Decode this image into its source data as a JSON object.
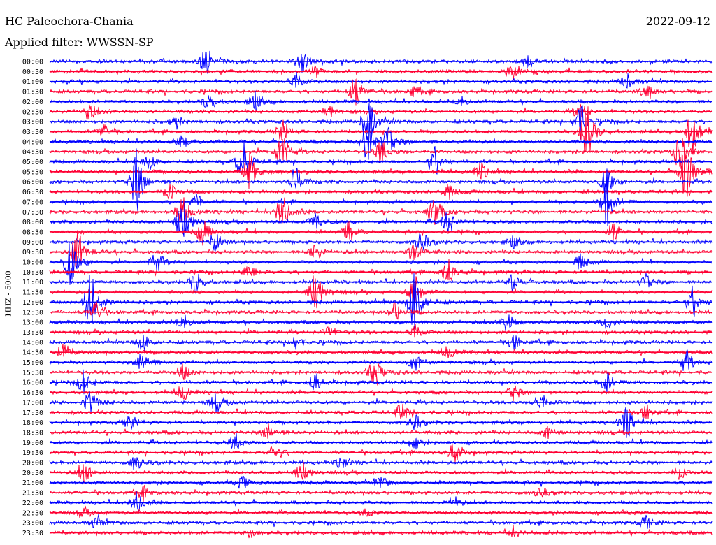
{
  "header": {
    "station": "HC Paleochora-Chania",
    "date": "2022-09-12",
    "filter": "Applied filter: WWSSN-SP"
  },
  "chart_data": {
    "type": "line",
    "title": "HC Paleochora-Chania",
    "ylabel": "HHZ - 5000",
    "trace_colors": [
      "#0000ff",
      "#ff0033"
    ],
    "rows": [
      {
        "label": "00:00",
        "events": [
          [
            0.235,
            1.0
          ],
          [
            0.38,
            0.7
          ],
          [
            0.72,
            0.4
          ]
        ]
      },
      {
        "label": "00:30",
        "events": [
          [
            0.7,
            0.6
          ],
          [
            0.4,
            0.3
          ]
        ]
      },
      {
        "label": "01:00",
        "events": [
          [
            0.37,
            0.6
          ],
          [
            0.87,
            0.5
          ]
        ]
      },
      {
        "label": "01:30",
        "events": [
          [
            0.46,
            1.1
          ],
          [
            0.55,
            0.4
          ],
          [
            0.9,
            0.5
          ]
        ]
      },
      {
        "label": "02:00",
        "events": [
          [
            0.24,
            0.6
          ],
          [
            0.31,
            0.6
          ],
          [
            0.62,
            0.3
          ]
        ]
      },
      {
        "label": "02:30",
        "events": [
          [
            0.06,
            0.6
          ],
          [
            0.42,
            0.4
          ],
          [
            0.8,
            0.6
          ]
        ]
      },
      {
        "label": "03:00",
        "events": [
          [
            0.48,
            1.5
          ],
          [
            0.8,
            1.3
          ],
          [
            0.19,
            0.4
          ]
        ]
      },
      {
        "label": "03:30",
        "events": [
          [
            0.08,
            0.5
          ],
          [
            0.35,
            0.7
          ],
          [
            0.81,
            2.0
          ],
          [
            0.97,
            1.8
          ]
        ]
      },
      {
        "label": "04:00",
        "events": [
          [
            0.48,
            1.9
          ],
          [
            0.51,
            0.9
          ],
          [
            0.2,
            0.4
          ]
        ]
      },
      {
        "label": "04:30",
        "events": [
          [
            0.35,
            1.3
          ],
          [
            0.5,
            0.9
          ],
          [
            0.95,
            1.4
          ]
        ]
      },
      {
        "label": "05:00",
        "events": [
          [
            0.29,
            1.5
          ],
          [
            0.58,
            1.0
          ],
          [
            0.15,
            0.5
          ]
        ]
      },
      {
        "label": "05:30",
        "events": [
          [
            0.3,
            1.4
          ],
          [
            0.96,
            2.2
          ],
          [
            0.65,
            0.6
          ]
        ]
      },
      {
        "label": "06:00",
        "events": [
          [
            0.13,
            2.2
          ],
          [
            0.37,
            1.0
          ],
          [
            0.84,
            0.9
          ]
        ]
      },
      {
        "label": "06:30",
        "events": [
          [
            0.18,
            0.6
          ],
          [
            0.6,
            0.5
          ]
        ]
      },
      {
        "label": "07:00",
        "events": [
          [
            0.84,
            1.7
          ],
          [
            0.22,
            0.5
          ]
        ]
      },
      {
        "label": "07:30",
        "events": [
          [
            0.35,
            1.2
          ],
          [
            0.58,
            1.1
          ],
          [
            0.2,
            1.0
          ]
        ]
      },
      {
        "label": "08:00",
        "events": [
          [
            0.2,
            1.8
          ],
          [
            0.4,
            0.6
          ],
          [
            0.6,
            0.9
          ]
        ]
      },
      {
        "label": "08:30",
        "events": [
          [
            0.23,
            0.8
          ],
          [
            0.45,
            0.7
          ],
          [
            0.85,
            0.6
          ]
        ]
      },
      {
        "label": "09:00",
        "events": [
          [
            0.25,
            0.7
          ],
          [
            0.56,
            0.8
          ],
          [
            0.7,
            0.4
          ]
        ]
      },
      {
        "label": "09:30",
        "events": [
          [
            0.04,
            1.5
          ],
          [
            0.4,
            0.6
          ],
          [
            0.55,
            0.8
          ]
        ]
      },
      {
        "label": "10:00",
        "events": [
          [
            0.03,
            1.6
          ],
          [
            0.16,
            0.7
          ],
          [
            0.8,
            0.5
          ]
        ]
      },
      {
        "label": "10:30",
        "events": [
          [
            0.6,
            0.9
          ],
          [
            0.3,
            0.5
          ]
        ]
      },
      {
        "label": "11:00",
        "events": [
          [
            0.22,
            0.8
          ],
          [
            0.7,
            0.6
          ],
          [
            0.9,
            0.5
          ]
        ]
      },
      {
        "label": "11:30",
        "events": [
          [
            0.4,
            1.6
          ],
          [
            0.55,
            1.0
          ]
        ]
      },
      {
        "label": "12:00",
        "events": [
          [
            0.06,
            2.0
          ],
          [
            0.55,
            2.2
          ],
          [
            0.97,
            1.0
          ]
        ]
      },
      {
        "label": "12:30",
        "events": [
          [
            0.07,
            0.8
          ],
          [
            0.52,
            0.6
          ]
        ]
      },
      {
        "label": "13:00",
        "events": [
          [
            0.69,
            0.7
          ],
          [
            0.2,
            0.5
          ],
          [
            0.84,
            0.5
          ]
        ]
      },
      {
        "label": "13:30",
        "events": [
          [
            0.55,
            0.5
          ],
          [
            0.42,
            0.4
          ]
        ]
      },
      {
        "label": "14:00",
        "events": [
          [
            0.14,
            0.6
          ],
          [
            0.37,
            0.5
          ],
          [
            0.7,
            0.5
          ]
        ]
      },
      {
        "label": "14:30",
        "events": [
          [
            0.02,
            0.6
          ],
          [
            0.6,
            0.4
          ]
        ]
      },
      {
        "label": "15:00",
        "events": [
          [
            0.14,
            0.9
          ],
          [
            0.55,
            0.6
          ],
          [
            0.96,
            0.8
          ]
        ]
      },
      {
        "label": "15:30",
        "events": [
          [
            0.49,
            1.0
          ],
          [
            0.2,
            0.5
          ]
        ]
      },
      {
        "label": "16:00",
        "events": [
          [
            0.05,
            0.8
          ],
          [
            0.4,
            0.6
          ],
          [
            0.84,
            0.7
          ]
        ]
      },
      {
        "label": "16:30",
        "events": [
          [
            0.2,
            0.5
          ],
          [
            0.7,
            0.5
          ]
        ]
      },
      {
        "label": "17:00",
        "events": [
          [
            0.06,
            0.8
          ],
          [
            0.25,
            0.6
          ],
          [
            0.74,
            0.6
          ]
        ]
      },
      {
        "label": "17:30",
        "events": [
          [
            0.53,
            0.6
          ],
          [
            0.9,
            0.5
          ]
        ]
      },
      {
        "label": "18:00",
        "events": [
          [
            0.87,
            1.1
          ],
          [
            0.12,
            0.5
          ],
          [
            0.55,
            0.5
          ]
        ]
      },
      {
        "label": "18:30",
        "events": [
          [
            0.33,
            0.6
          ],
          [
            0.75,
            0.4
          ]
        ]
      },
      {
        "label": "19:00",
        "events": [
          [
            0.28,
            0.6
          ],
          [
            0.55,
            0.4
          ]
        ]
      },
      {
        "label": "19:30",
        "events": [
          [
            0.34,
            0.6
          ],
          [
            0.61,
            0.7
          ]
        ]
      },
      {
        "label": "20:00",
        "events": [
          [
            0.13,
            0.5
          ],
          [
            0.44,
            0.4
          ]
        ]
      },
      {
        "label": "20:30",
        "events": [
          [
            0.05,
            0.7
          ],
          [
            0.38,
            0.8
          ],
          [
            0.95,
            0.5
          ]
        ]
      },
      {
        "label": "21:00",
        "events": [
          [
            0.29,
            0.4
          ],
          [
            0.5,
            0.4
          ]
        ]
      },
      {
        "label": "21:30",
        "events": [
          [
            0.14,
            0.4
          ],
          [
            0.74,
            0.4
          ]
        ]
      },
      {
        "label": "22:00",
        "events": [
          [
            0.13,
            0.7
          ],
          [
            0.61,
            0.4
          ]
        ]
      },
      {
        "label": "22:30",
        "events": [
          [
            0.05,
            0.3
          ],
          [
            0.48,
            0.3
          ]
        ]
      },
      {
        "label": "23:00",
        "events": [
          [
            0.07,
            0.4
          ],
          [
            0.9,
            0.5
          ]
        ]
      },
      {
        "label": "23:30",
        "events": [
          [
            0.3,
            0.3
          ],
          [
            0.7,
            0.3
          ]
        ]
      }
    ]
  }
}
